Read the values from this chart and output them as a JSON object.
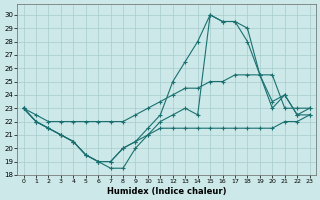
{
  "xlabel": "Humidex (Indice chaleur)",
  "bg_color": "#cce8e8",
  "grid_color": "#a8cccc",
  "line_color": "#1a7070",
  "xlim": [
    -0.5,
    23.5
  ],
  "ylim": [
    18,
    30.8
  ],
  "xticks": [
    0,
    1,
    2,
    3,
    4,
    5,
    6,
    7,
    8,
    9,
    10,
    11,
    12,
    13,
    14,
    15,
    16,
    17,
    18,
    19,
    20,
    21,
    22,
    23
  ],
  "yticks": [
    18,
    19,
    20,
    21,
    22,
    23,
    24,
    25,
    26,
    27,
    28,
    29,
    30
  ],
  "line1_y": [
    23,
    22,
    21.5,
    21,
    20.5,
    19.5,
    19,
    18.5,
    18.5,
    20,
    21,
    21.5,
    21.5,
    21.5,
    21.5,
    21.5,
    21.5,
    21.5,
    21.5,
    21.5,
    21.5,
    22,
    22,
    22.5
  ],
  "line2_y": [
    23,
    22,
    21.5,
    21,
    20.5,
    19.5,
    19,
    19,
    20,
    20.5,
    21,
    22,
    22.5,
    23.0,
    22.5,
    30,
    29.5,
    29.5,
    29,
    25.5,
    23,
    24,
    22.5,
    22.5
  ],
  "line3_y": [
    23,
    22,
    21.5,
    21,
    20.5,
    19.5,
    19,
    19,
    20,
    20.5,
    21.5,
    22.5,
    25,
    26.5,
    28,
    30,
    29.5,
    29.5,
    28,
    25.5,
    23.5,
    24,
    22.5,
    23
  ],
  "line4_y": [
    23,
    22.5,
    22,
    22,
    22,
    22,
    22,
    22,
    22,
    22.5,
    23,
    23.5,
    24,
    24.5,
    24.5,
    25,
    25,
    25.5,
    25.5,
    25.5,
    25.5,
    23,
    23,
    23
  ]
}
